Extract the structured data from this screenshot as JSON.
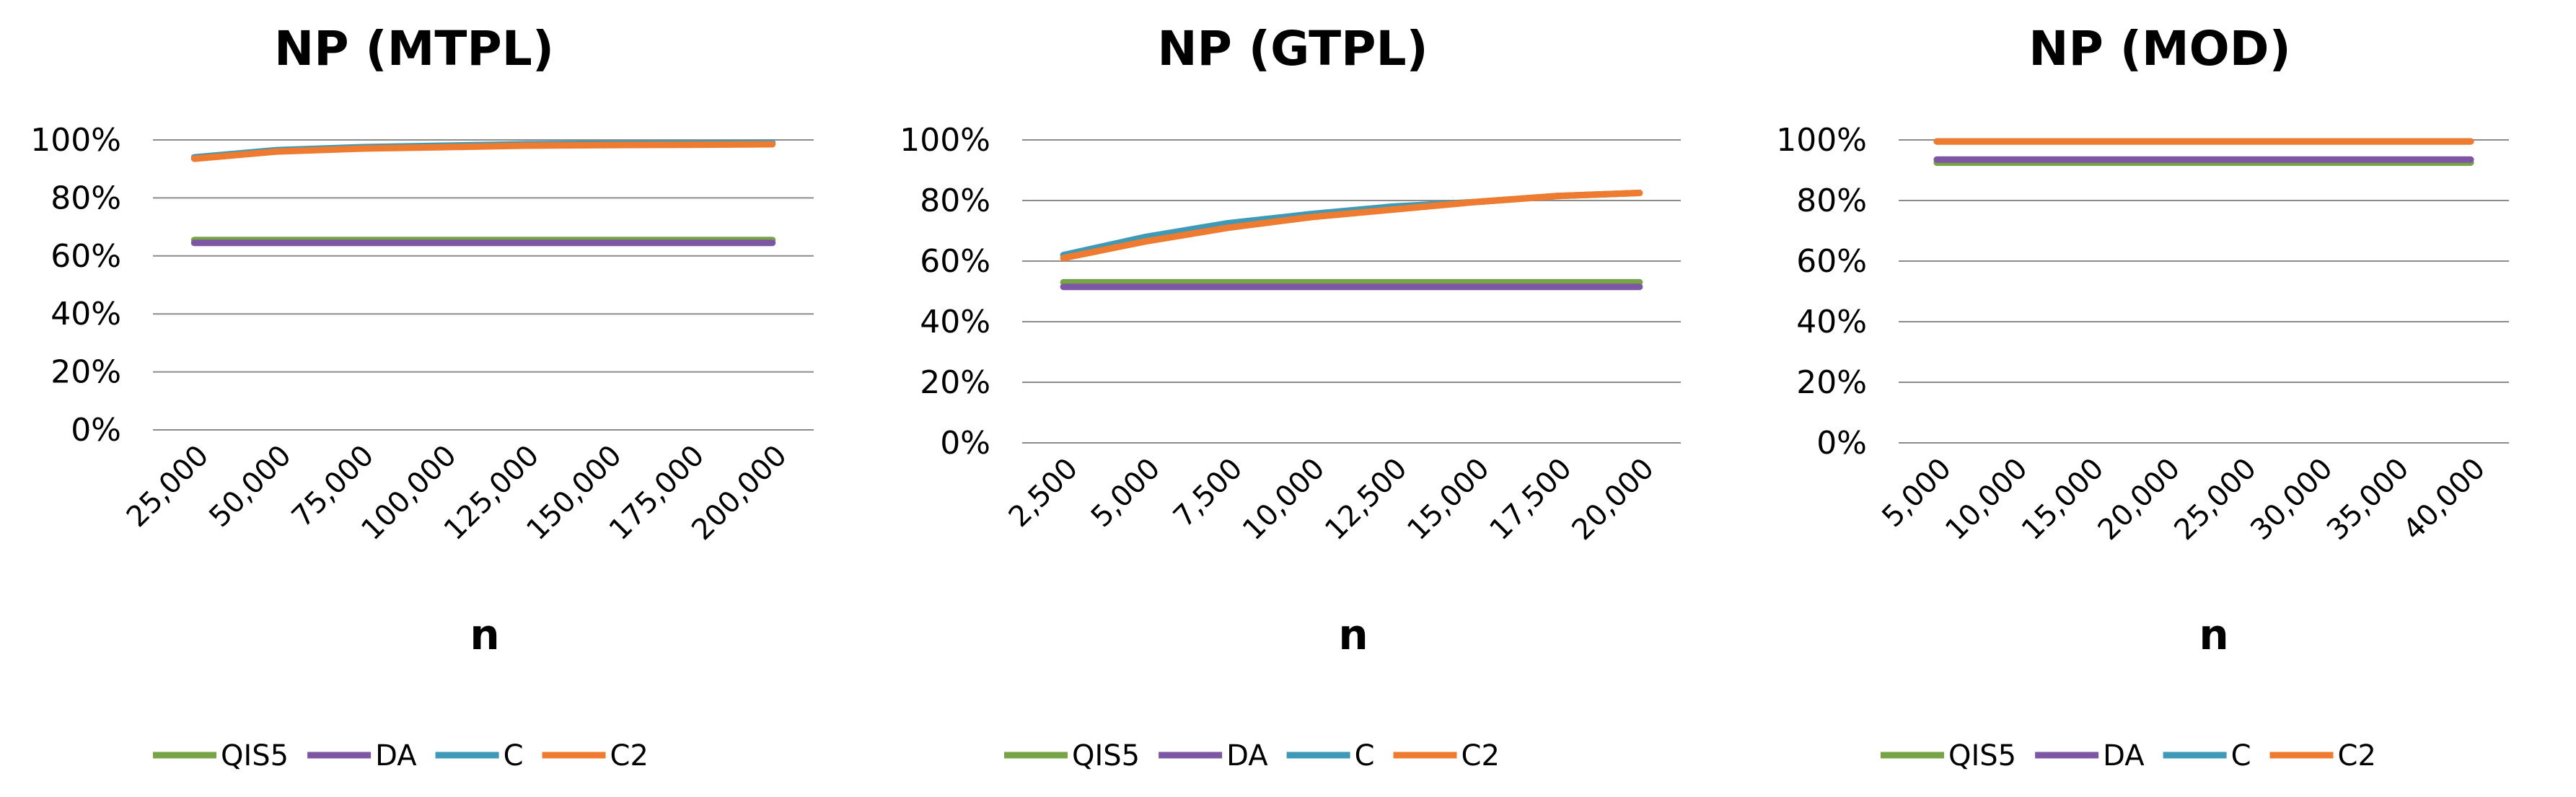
{
  "legend": [
    {
      "name": "QIS5",
      "color": "#77A446"
    },
    {
      "name": "DA",
      "color": "#7E57A4"
    },
    {
      "name": "C",
      "color": "#3E9AB6"
    },
    {
      "name": "C2",
      "color": "#EE7B2F"
    }
  ],
  "chart_data": [
    {
      "type": "line",
      "title": "NP (MTPL)",
      "xlabel": "n",
      "ylabel": "",
      "ylim": [
        0,
        100
      ],
      "yticks": [
        "0%",
        "20%",
        "40%",
        "60%",
        "80%",
        "100%"
      ],
      "categories": [
        "25,000",
        "50,000",
        "75,000",
        "100,000",
        "125,000",
        "150,000",
        "175,000",
        "200,000"
      ],
      "series": [
        {
          "name": "QIS5",
          "values": [
            65.5,
            65.5,
            65.5,
            65.5,
            65.5,
            65.5,
            65.5,
            65.5
          ]
        },
        {
          "name": "DA",
          "values": [
            64.5,
            64.5,
            64.5,
            64.5,
            64.5,
            64.5,
            64.5,
            64.5
          ]
        },
        {
          "name": "C",
          "values": [
            94,
            96.5,
            97.5,
            98,
            98.5,
            98.7,
            98.8,
            99
          ]
        },
        {
          "name": "C2",
          "values": [
            93.5,
            96,
            97,
            97.5,
            98,
            98.2,
            98.3,
            98.5
          ]
        }
      ]
    },
    {
      "type": "line",
      "title": "NP (GTPL)",
      "xlabel": "n",
      "ylabel": "",
      "ylim": [
        0,
        100
      ],
      "yticks": [
        "0%",
        "20%",
        "40%",
        "60%",
        "80%",
        "100%"
      ],
      "categories": [
        "2,500",
        "5,000",
        "7,500",
        "10,000",
        "12,500",
        "15,000",
        "17,500",
        "20,000"
      ],
      "series": [
        {
          "name": "QIS5",
          "values": [
            53,
            53,
            53,
            53,
            53,
            53,
            53,
            53
          ]
        },
        {
          "name": "DA",
          "values": [
            51.5,
            51.5,
            51.5,
            51.5,
            51.5,
            51.5,
            51.5,
            51.5
          ]
        },
        {
          "name": "C",
          "values": [
            62,
            68,
            72.5,
            75.5,
            78,
            79.5,
            81.5,
            82.5
          ]
        },
        {
          "name": "C2",
          "values": [
            61,
            66.5,
            71,
            74.5,
            77,
            79.5,
            81.5,
            82.5
          ]
        }
      ]
    },
    {
      "type": "line",
      "title": "NP (MOD)",
      "xlabel": "n",
      "ylabel": "",
      "ylim": [
        0,
        100
      ],
      "yticks": [
        "0%",
        "20%",
        "40%",
        "60%",
        "80%",
        "100%"
      ],
      "categories": [
        "5,000",
        "10,000",
        "15,000",
        "20,000",
        "25,000",
        "30,000",
        "35,000",
        "40,000"
      ],
      "series": [
        {
          "name": "QIS5",
          "values": [
            92.5,
            92.5,
            92.5,
            92.5,
            92.5,
            92.5,
            92.5,
            92.5
          ]
        },
        {
          "name": "DA",
          "values": [
            93.5,
            93.5,
            93.5,
            93.5,
            93.5,
            93.5,
            93.5,
            93.5
          ]
        },
        {
          "name": "C",
          "values": [
            99.5,
            99.5,
            99.5,
            99.5,
            99.5,
            99.5,
            99.5,
            99.5
          ]
        },
        {
          "name": "C2",
          "values": [
            99.5,
            99.5,
            99.5,
            99.5,
            99.5,
            99.5,
            99.5,
            99.5
          ]
        }
      ]
    }
  ]
}
